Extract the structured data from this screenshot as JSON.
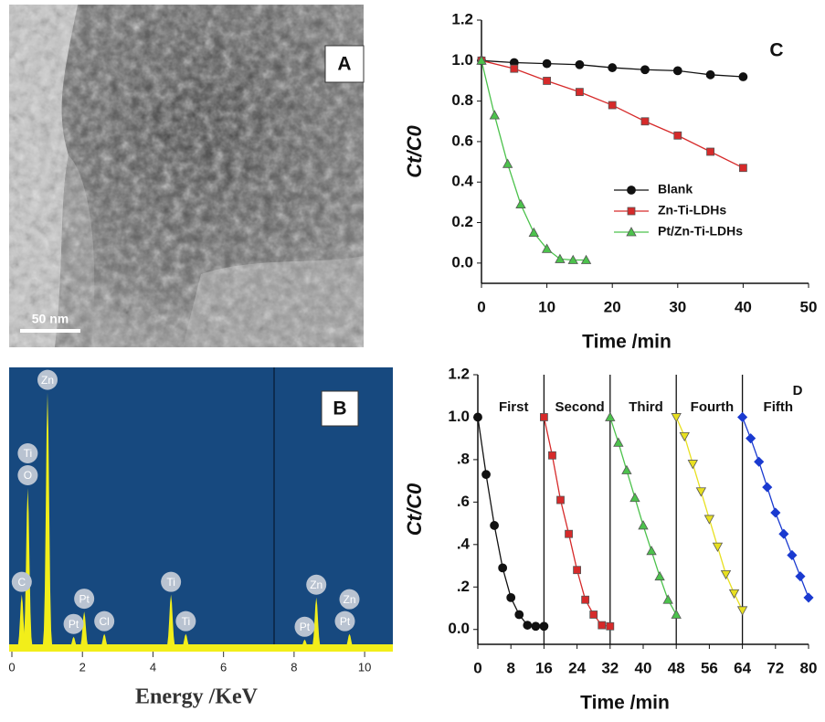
{
  "panel_a": {
    "letter": "A",
    "scale_bar": "50 nm"
  },
  "chart_data": [
    {
      "type": "spectrum",
      "panel_label": "B",
      "x_label": "Energy /KeV",
      "xlim": [
        0,
        10.8
      ],
      "xticks": [
        0,
        2,
        4,
        6,
        8,
        10
      ],
      "ylim": [
        0,
        100
      ],
      "color": "#f2ee1a",
      "peaks": {
        "energy": [
          0.28,
          0.45,
          1.01,
          1.75,
          2.05,
          2.62,
          4.51,
          4.93,
          8.3,
          8.63,
          9.57
        ],
        "values": [
          19,
          57,
          91,
          4,
          13,
          5,
          19,
          5,
          3,
          18,
          5
        ]
      },
      "peak_labels": [
        {
          "text": "C",
          "energy": 0.28
        },
        {
          "text": "O",
          "energy": 0.45
        },
        {
          "text": "Ti",
          "energy": 0.45
        },
        {
          "text": "Zn",
          "energy": 1.01
        },
        {
          "text": "Pt",
          "energy": 1.75
        },
        {
          "text": "Pt",
          "energy": 2.05
        },
        {
          "text": "Cl",
          "energy": 2.62
        },
        {
          "text": "Ti",
          "energy": 4.51
        },
        {
          "text": "Ti",
          "energy": 4.93
        },
        {
          "text": "Pt",
          "energy": 8.3
        },
        {
          "text": "Zn",
          "energy": 8.63
        },
        {
          "text": "Pt",
          "energy": 9.44
        },
        {
          "text": "Zn",
          "energy": 9.57
        }
      ]
    },
    {
      "type": "line",
      "panel_label": "C",
      "x_label": "Time /min",
      "y_label": "Ct/C0",
      "xlim": [
        0,
        50
      ],
      "xticks": [
        0,
        10,
        20,
        30,
        40,
        50
      ],
      "ylim": [
        -0.1,
        1.2
      ],
      "yticks": [
        {
          "value": 0,
          "label": "0.0"
        },
        0.2,
        0.4,
        0.6,
        0.8,
        {
          "value": 1,
          "label": "1.0"
        },
        1.2
      ],
      "legend": "right",
      "series": [
        {
          "name": "Blank",
          "color": "#111111",
          "marker": "circle",
          "x": [
            0,
            5,
            10,
            15,
            20,
            25,
            30,
            35,
            40
          ],
          "values": [
            1.0,
            0.99,
            0.985,
            0.98,
            0.965,
            0.955,
            0.95,
            0.93,
            0.92
          ]
        },
        {
          "name": "Zn-Ti-LDHs",
          "color": "#d62a2a",
          "marker": "square",
          "x": [
            0,
            5,
            10,
            15,
            20,
            25,
            30,
            35,
            40
          ],
          "values": [
            1.0,
            0.96,
            0.9,
            0.845,
            0.78,
            0.7,
            0.63,
            0.55,
            0.47
          ]
        },
        {
          "name": "Pt/Zn-Ti-LDHs",
          "color": "#4cc24c",
          "marker": "triangle-up",
          "x": [
            0,
            2,
            4,
            6,
            8,
            10,
            12,
            14,
            16
          ],
          "values": [
            1.0,
            0.73,
            0.49,
            0.29,
            0.15,
            0.07,
            0.02,
            0.015,
            0.015
          ]
        }
      ]
    },
    {
      "type": "line",
      "panel_label": "D",
      "x_label": "Time /min",
      "y_label": "Ct/C0",
      "xlim": [
        0,
        80
      ],
      "xticks": [
        0,
        8,
        16,
        24,
        32,
        40,
        48,
        56,
        64,
        72,
        80
      ],
      "ylim": [
        -0.07,
        1.2
      ],
      "yticks": [
        {
          "value": 0,
          "label": "0.0"
        },
        {
          "value": 0.2,
          "label": ".2"
        },
        {
          "value": 0.4,
          "label": ".4"
        },
        {
          "value": 0.6,
          "label": ".6"
        },
        {
          "value": 0.8,
          "label": ".8"
        },
        {
          "value": 1,
          "label": "1.0"
        },
        1.2
      ],
      "separators": [
        16,
        32,
        48,
        64
      ],
      "series": [
        {
          "name": "First",
          "color": "#111111",
          "marker": "circle",
          "x": [
            0,
            2,
            4,
            6,
            8,
            10,
            12,
            14,
            16
          ],
          "values": [
            1.0,
            0.73,
            0.49,
            0.29,
            0.15,
            0.07,
            0.02,
            0.015,
            0.015
          ]
        },
        {
          "name": "Second",
          "color": "#d62a2a",
          "marker": "square",
          "x": [
            16,
            18,
            20,
            22,
            24,
            26,
            28,
            30,
            32
          ],
          "values": [
            1.0,
            0.82,
            0.61,
            0.45,
            0.28,
            0.14,
            0.07,
            0.02,
            0.015
          ]
        },
        {
          "name": "Third",
          "color": "#4cc24c",
          "marker": "triangle-up",
          "x": [
            32,
            34,
            36,
            38,
            40,
            42,
            44,
            46,
            48
          ],
          "values": [
            1.0,
            0.88,
            0.75,
            0.62,
            0.49,
            0.37,
            0.25,
            0.14,
            0.07
          ]
        },
        {
          "name": "Fourth",
          "color": "#e8e020",
          "marker": "triangle-down",
          "x": [
            48,
            50,
            52,
            54,
            56,
            58,
            60,
            62,
            64
          ],
          "values": [
            1.0,
            0.91,
            0.78,
            0.65,
            0.52,
            0.39,
            0.26,
            0.17,
            0.09
          ]
        },
        {
          "name": "Fifth",
          "color": "#1a3ad0",
          "marker": "diamond",
          "x": [
            64,
            66,
            68,
            70,
            72,
            74,
            76,
            78,
            80
          ],
          "values": [
            1.0,
            0.9,
            0.79,
            0.67,
            0.55,
            0.45,
            0.35,
            0.25,
            0.15
          ]
        }
      ]
    }
  ]
}
